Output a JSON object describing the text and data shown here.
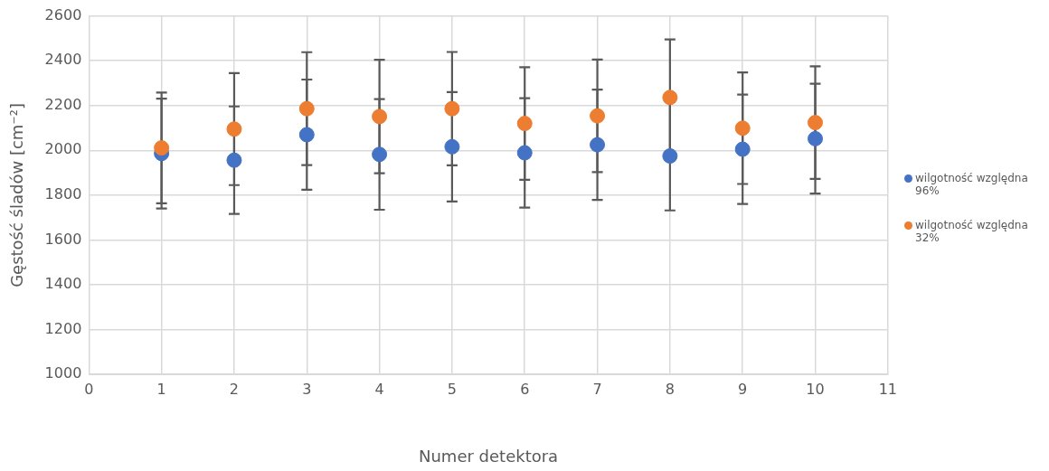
{
  "chart_data": {
    "type": "scatter",
    "xlabel": "Numer detektora",
    "ylabel": "Gęstość śladów [cm⁻²]",
    "x": [
      1,
      2,
      3,
      4,
      5,
      6,
      7,
      8,
      9,
      10
    ],
    "xlim": [
      0,
      11
    ],
    "xticks": [
      0,
      1,
      2,
      3,
      4,
      5,
      6,
      7,
      8,
      9,
      10,
      11
    ],
    "ylim": [
      1000,
      2600
    ],
    "yticks": [
      1000,
      1200,
      1400,
      1600,
      1800,
      2000,
      2200,
      2400,
      2600
    ],
    "grid": true,
    "legend": "right",
    "marker": "circle",
    "series": [
      {
        "name": "wilgotność względna 96%",
        "color": "#4472c4",
        "values": [
          1986,
          1956,
          2070,
          1982,
          2016,
          1989,
          2025,
          1975,
          2005,
          2052
        ],
        "errors": [
          245,
          240,
          246,
          247,
          244,
          244,
          246,
          243,
          244,
          245
        ]
      },
      {
        "name": "wilgotność względna 32%",
        "color": "#ed7d31",
        "values": [
          2011,
          2095,
          2186,
          2151,
          2186,
          2120,
          2154,
          2236,
          2099,
          2124
        ],
        "errors": [
          247,
          250,
          252,
          253,
          253,
          251,
          251,
          259,
          249,
          251
        ]
      }
    ]
  }
}
